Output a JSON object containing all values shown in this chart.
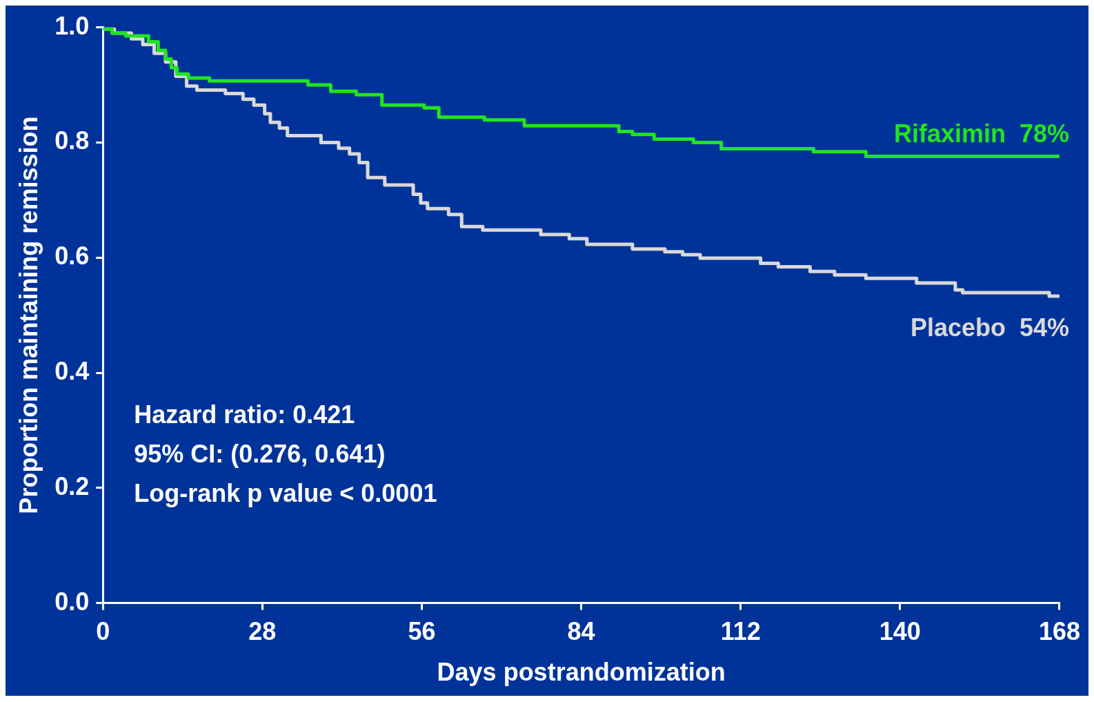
{
  "chart_data": {
    "type": "step",
    "xlabel": "Days postrandomization",
    "ylabel": "Proportion maintaining remission",
    "xlim": [
      0,
      168
    ],
    "xticks": [
      0,
      28,
      56,
      84,
      112,
      140,
      168
    ],
    "ylim": [
      0,
      1
    ],
    "yticks": [
      {
        "value": 0,
        "label": "0.0"
      },
      {
        "value": 0.2,
        "label": "0.2"
      },
      {
        "value": 0.4,
        "label": "0.4"
      },
      {
        "value": 0.6,
        "label": "0.6"
      },
      {
        "value": 0.8,
        "label": "0.8"
      },
      {
        "value": 1,
        "label": "1.0"
      }
    ],
    "grid": false,
    "marker": "none",
    "line_style": "solid",
    "series": [
      {
        "name": "Rifaximin  78%",
        "color": "#22e41e",
        "x": [
          0,
          1.6,
          4,
          8,
          9.7,
          11,
          12,
          13,
          15,
          18.7,
          36,
          40,
          44.5,
          49,
          56.4,
          59,
          67,
          74,
          90.6,
          93,
          96.8,
          103.7,
          108.6,
          124.8,
          134,
          168
        ],
        "values": [
          0.997,
          0.99,
          0.985,
          0.975,
          0.96,
          0.945,
          0.93,
          0.919,
          0.912,
          0.907,
          0.9,
          0.889,
          0.883,
          0.865,
          0.86,
          0.844,
          0.839,
          0.829,
          0.819,
          0.814,
          0.806,
          0.8,
          0.789,
          0.784,
          0.776,
          0.776
        ]
      },
      {
        "name": "Placebo  54%",
        "color": "#d9d9d9",
        "x": [
          0,
          2,
          5,
          7,
          9,
          11,
          12.8,
          14.7,
          16.5,
          21.5,
          24.6,
          26.5,
          28.4,
          29.4,
          31,
          32.4,
          38.3,
          41.4,
          43.3,
          45,
          46.5,
          49.5,
          54.5,
          55.8,
          57,
          60.7,
          63,
          66.7,
          76.9,
          81.9,
          85,
          93,
          98.7,
          101.8,
          104.9,
          115.5,
          118.6,
          124.2,
          128.5,
          134,
          142.9,
          149.7,
          151,
          166.2,
          168
        ],
        "values": [
          0.997,
          0.99,
          0.98,
          0.97,
          0.955,
          0.94,
          0.915,
          0.898,
          0.891,
          0.885,
          0.875,
          0.865,
          0.85,
          0.835,
          0.825,
          0.812,
          0.8,
          0.79,
          0.78,
          0.765,
          0.739,
          0.726,
          0.71,
          0.695,
          0.685,
          0.675,
          0.654,
          0.648,
          0.64,
          0.633,
          0.623,
          0.615,
          0.61,
          0.605,
          0.599,
          0.59,
          0.584,
          0.576,
          0.57,
          0.564,
          0.556,
          0.544,
          0.539,
          0.533,
          0.533
        ]
      }
    ],
    "annotations": [
      "Hazard ratio: 0.421",
      "95% CI: (0.276, 0.641)",
      "Log-rank p value < 0.0001"
    ]
  }
}
